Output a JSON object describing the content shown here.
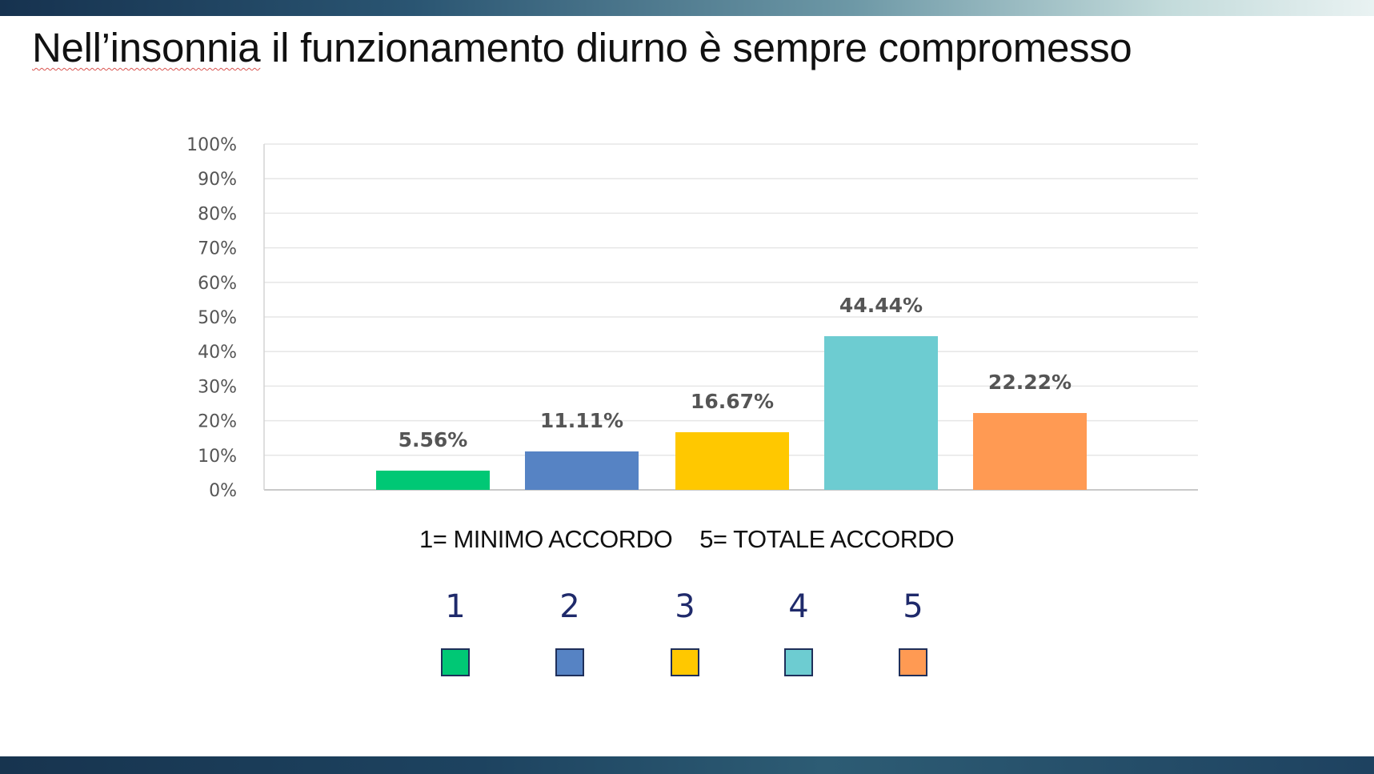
{
  "slide": {
    "title_word1": "Nell’insonnia",
    "title_rest": " il funzionamento diurno è sempre compromesso",
    "scale_min_label": "1= MINIMO ACCORDO",
    "scale_max_label": "5= TOTALE ACCORDO"
  },
  "legend": [
    {
      "label": "1",
      "color": "#00c875"
    },
    {
      "label": "2",
      "color": "#5683c4"
    },
    {
      "label": "3",
      "color": "#ffc800"
    },
    {
      "label": "4",
      "color": "#6dccd1"
    },
    {
      "label": "5",
      "color": "#ff9a53"
    }
  ],
  "chart_data": {
    "type": "bar",
    "categories": [
      "1",
      "2",
      "3",
      "4",
      "5"
    ],
    "values": [
      5.56,
      11.11,
      16.67,
      44.44,
      22.22
    ],
    "data_labels": [
      "5.56%",
      "11.11%",
      "16.67%",
      "44.44%",
      "22.22%"
    ],
    "colors": [
      "#00c875",
      "#5683c4",
      "#ffc800",
      "#6dccd1",
      "#ff9a53"
    ],
    "ylim": [
      0,
      100
    ],
    "yticks": [
      0,
      10,
      20,
      30,
      40,
      50,
      60,
      70,
      80,
      90,
      100
    ],
    "ytick_labels": [
      "0%",
      "10%",
      "20%",
      "30%",
      "40%",
      "50%",
      "60%",
      "70%",
      "80%",
      "90%",
      "100%"
    ],
    "grid": true,
    "title": "",
    "xlabel": "",
    "ylabel": ""
  }
}
